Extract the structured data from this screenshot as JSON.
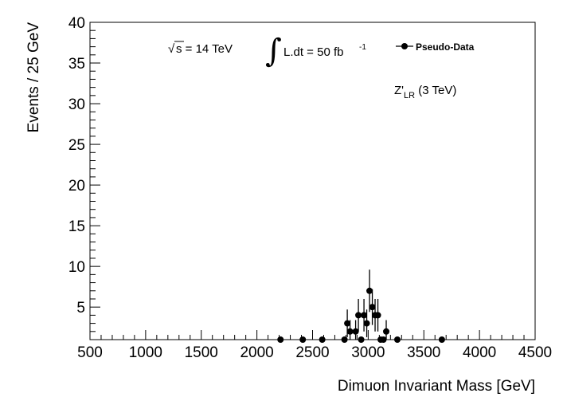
{
  "chart_data": {
    "type": "scatter",
    "xlabel": "Dimuon Invariant Mass [GeV]",
    "ylabel": "Events / 25 GeV",
    "xlim": [
      500,
      4500
    ],
    "ylim": [
      1,
      40
    ],
    "x_ticks": [
      500,
      1000,
      1500,
      2000,
      2500,
      3000,
      3500,
      4000,
      4500
    ],
    "y_ticks": [
      5,
      10,
      15,
      20,
      25,
      30,
      35,
      40
    ],
    "legend": {
      "label": "Pseudo-Data",
      "position": "top-right"
    },
    "annotations": {
      "sqrt_symbol": "√",
      "energy": "s = 14 TeV",
      "integral_symbol": "∫",
      "lumi": "L.dt = 50 fb",
      "lumi_exp": "-1",
      "model_main": "Z'",
      "model_sub": "LR",
      "model_mass": " (3 TeV)"
    },
    "series": [
      {
        "name": "Pseudo-Data",
        "points": [
          {
            "x": 2212,
            "y": 1,
            "err": 0
          },
          {
            "x": 2412,
            "y": 1,
            "err": 0
          },
          {
            "x": 2587,
            "y": 1,
            "err": 0
          },
          {
            "x": 2787,
            "y": 1,
            "err": 0
          },
          {
            "x": 2812,
            "y": 3,
            "err": 1.7
          },
          {
            "x": 2837,
            "y": 2,
            "err": 1.4
          },
          {
            "x": 2887,
            "y": 2,
            "err": 1.4
          },
          {
            "x": 2912,
            "y": 4,
            "err": 2.0
          },
          {
            "x": 2937,
            "y": 1,
            "err": 0
          },
          {
            "x": 2962,
            "y": 4,
            "err": 2.0
          },
          {
            "x": 2987,
            "y": 3,
            "err": 1.7
          },
          {
            "x": 3012,
            "y": 7,
            "err": 2.6
          },
          {
            "x": 3037,
            "y": 5,
            "err": 2.2
          },
          {
            "x": 3062,
            "y": 4,
            "err": 2.0
          },
          {
            "x": 3087,
            "y": 4,
            "err": 2.0
          },
          {
            "x": 3112,
            "y": 1,
            "err": 0
          },
          {
            "x": 3137,
            "y": 1,
            "err": 0
          },
          {
            "x": 3162,
            "y": 2,
            "err": 1.4
          },
          {
            "x": 3262,
            "y": 1,
            "err": 0
          },
          {
            "x": 3662,
            "y": 1,
            "err": 0
          }
        ]
      }
    ]
  }
}
